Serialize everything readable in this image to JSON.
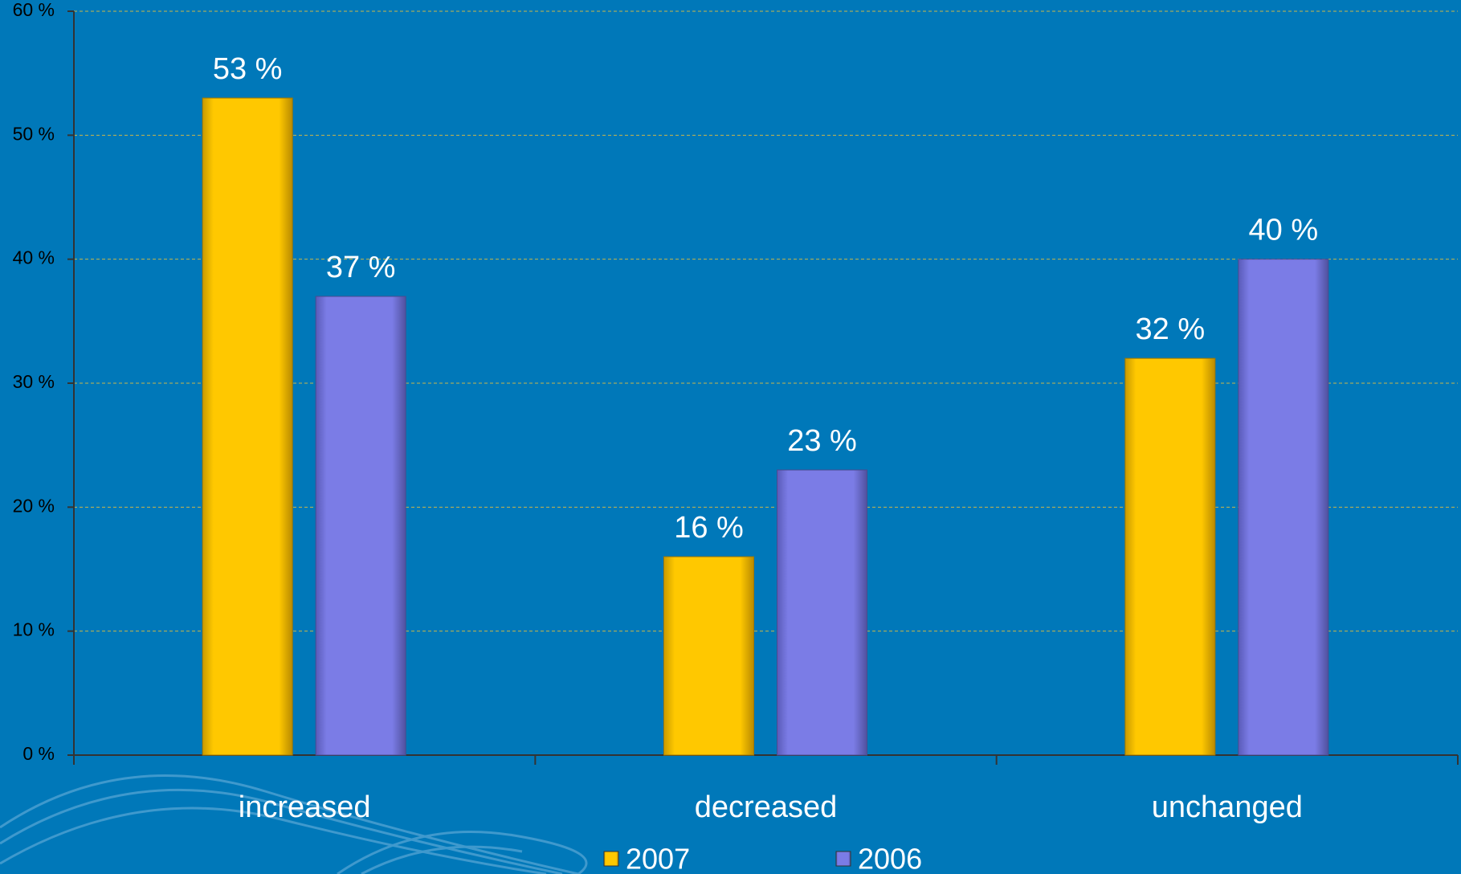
{
  "chart_data": {
    "type": "bar",
    "categories": [
      "increased",
      "decreased",
      "unchanged"
    ],
    "series": [
      {
        "name": "2007",
        "color": "#ffc800",
        "values": [
          53,
          16,
          32
        ],
        "value_labels": [
          "53 %",
          "16 %",
          "32 %"
        ]
      },
      {
        "name": "2006",
        "color": "#7b7ce6",
        "values": [
          37,
          23,
          40
        ],
        "value_labels": [
          "37 %",
          "23 %",
          "40 %"
        ]
      }
    ],
    "ylim": [
      0,
      60
    ],
    "yticks": [
      {
        "value": 0,
        "label": "0 %"
      },
      {
        "value": 10,
        "label": "10 %"
      },
      {
        "value": 20,
        "label": "20 %"
      },
      {
        "value": 30,
        "label": "30 %"
      },
      {
        "value": 40,
        "label": "40 %"
      },
      {
        "value": 50,
        "label": "50 %"
      },
      {
        "value": 60,
        "label": "60 %"
      }
    ],
    "grid": true
  }
}
